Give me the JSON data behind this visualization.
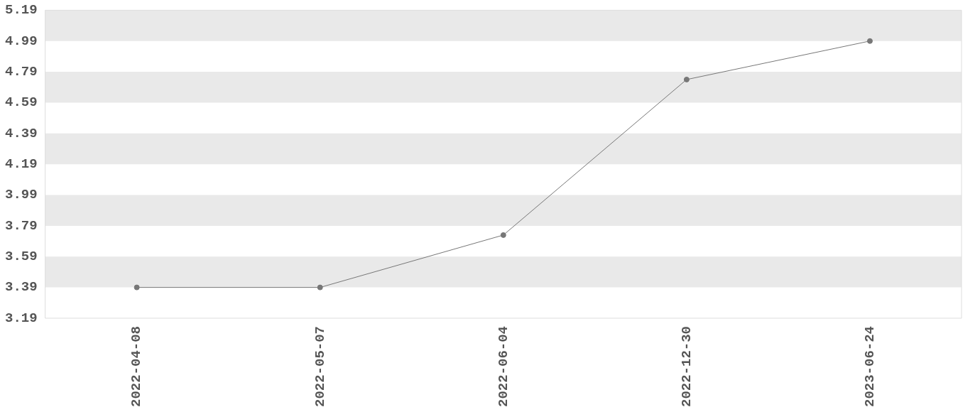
{
  "chart_data": {
    "type": "line",
    "categories": [
      "2022-04-08",
      "2022-05-07",
      "2022-06-04",
      "2022-12-30",
      "2023-06-24"
    ],
    "series": [
      {
        "color": "#777777",
        "values": [
          3.39,
          3.39,
          3.73,
          4.74,
          4.99
        ]
      }
    ],
    "ylim": [
      3.19,
      5.19
    ],
    "yticks": [
      3.19,
      3.39,
      3.59,
      3.79,
      3.99,
      4.19,
      4.39,
      4.59,
      4.79,
      4.99,
      5.19
    ],
    "bands": [
      {
        "axis": "y",
        "from": 3.39,
        "to": 3.59,
        "color": "#e9e9e9"
      },
      {
        "axis": "y",
        "from": 3.79,
        "to": 3.99,
        "color": "#e9e9e9"
      },
      {
        "axis": "y",
        "from": 4.19,
        "to": 4.39,
        "color": "#e9e9e9"
      },
      {
        "axis": "y",
        "from": 4.59,
        "to": 4.79,
        "color": "#e9e9e9"
      },
      {
        "axis": "y",
        "from": 4.99,
        "to": 5.19,
        "color": "#e9e9e9"
      }
    ],
    "legend": false,
    "marker": "circle",
    "line_style": "solid"
  }
}
